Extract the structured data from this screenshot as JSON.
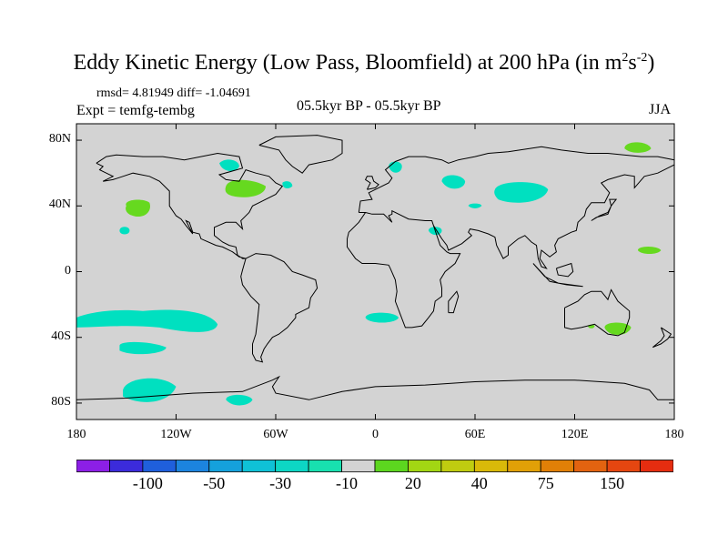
{
  "title": {
    "main": "Eddy Kinetic Energy (Low Pass, Bloomfield) at 200 hPa (in m",
    "sup1": "2",
    "mid": "s",
    "sup2": "-2",
    "end": ")"
  },
  "stats": "rmsd= 4.81949  diff= -1.04691",
  "experiment": "Expt = temfg-tembg",
  "period": "05.5kyr BP - 05.5kyr BP",
  "season": "JJA",
  "map": {
    "land_color": "#d3d3d3",
    "lat_labels": [
      "80N",
      "40N",
      "0",
      "40S",
      "80S"
    ],
    "lat_values": [
      80,
      40,
      0,
      -40,
      -80
    ],
    "lon_labels": [
      "180",
      "120W",
      "60W",
      "0",
      "60E",
      "120E",
      "180"
    ],
    "lon_values": [
      -180,
      -120,
      -60,
      0,
      60,
      120,
      180
    ],
    "lat_range": [
      -90,
      90
    ],
    "lon_range": [
      -180,
      180
    ],
    "anomaly_patches": [
      {
        "region": "Hudson Bay",
        "lon": -88,
        "lat": 64,
        "class": "-10"
      },
      {
        "region": "Great Lakes",
        "lon": -75,
        "lat": 49,
        "class": "20"
      },
      {
        "region": "North Atlantic east",
        "lon": -53,
        "lat": 52,
        "class": "-10"
      },
      {
        "region": "North Pacific",
        "lon": -144,
        "lat": 38,
        "class": "20"
      },
      {
        "region": "East Pacific",
        "lon": -151,
        "lat": 24,
        "class": "-10"
      },
      {
        "region": "Scandinavia",
        "lon": 12,
        "lat": 62,
        "class": "-10"
      },
      {
        "region": "Western Russia",
        "lon": 46,
        "lat": 54,
        "class": "-10"
      },
      {
        "region": "Central Asia",
        "lon": 86,
        "lat": 46,
        "class": "-10"
      },
      {
        "region": "Caspian",
        "lon": 60,
        "lat": 40,
        "class": "-10"
      },
      {
        "region": "Middle East",
        "lon": 36,
        "lat": 24,
        "class": "-10"
      },
      {
        "region": "Siberia",
        "lon": 158,
        "lat": 74,
        "class": "20"
      },
      {
        "region": "West Pacific",
        "lon": 166,
        "lat": 12,
        "class": "20"
      },
      {
        "region": "South Pacific band",
        "lon": -120,
        "lat": -32,
        "class": "-10"
      },
      {
        "region": "South Pacific",
        "lon": -140,
        "lat": -47,
        "class": "-10"
      },
      {
        "region": "Far South Pacific",
        "lon": -138,
        "lat": -75,
        "class": "-10"
      },
      {
        "region": "Drake Passage",
        "lon": -82,
        "lat": -80,
        "class": "-10"
      },
      {
        "region": "South Atlantic",
        "lon": 3,
        "lat": -28,
        "class": "-10"
      },
      {
        "region": "Australia",
        "lon": 146,
        "lat": -36,
        "class": "20"
      },
      {
        "region": "Tasman",
        "lon": 130,
        "lat": -34,
        "class": "20"
      }
    ]
  },
  "colorbar": {
    "colors": [
      "#8C1FE6",
      "#3B2BDB",
      "#1F5FDC",
      "#1C84DF",
      "#15A1DC",
      "#0FC1D6",
      "#0DD6C4",
      "#18E0AF",
      "#D3D3D3",
      "#5CD61F",
      "#A2D613",
      "#BFCC10",
      "#D9B909",
      "#E1A007",
      "#E18007",
      "#E36310",
      "#E54610",
      "#E52D10"
    ],
    "labels": [
      "-100",
      "-50",
      "-30",
      "-10",
      "20",
      "40",
      "75",
      "150"
    ]
  },
  "colors": {
    "negative_10": "#00E0C0",
    "positive_20": "#66D91F",
    "coastline": "#000000"
  }
}
